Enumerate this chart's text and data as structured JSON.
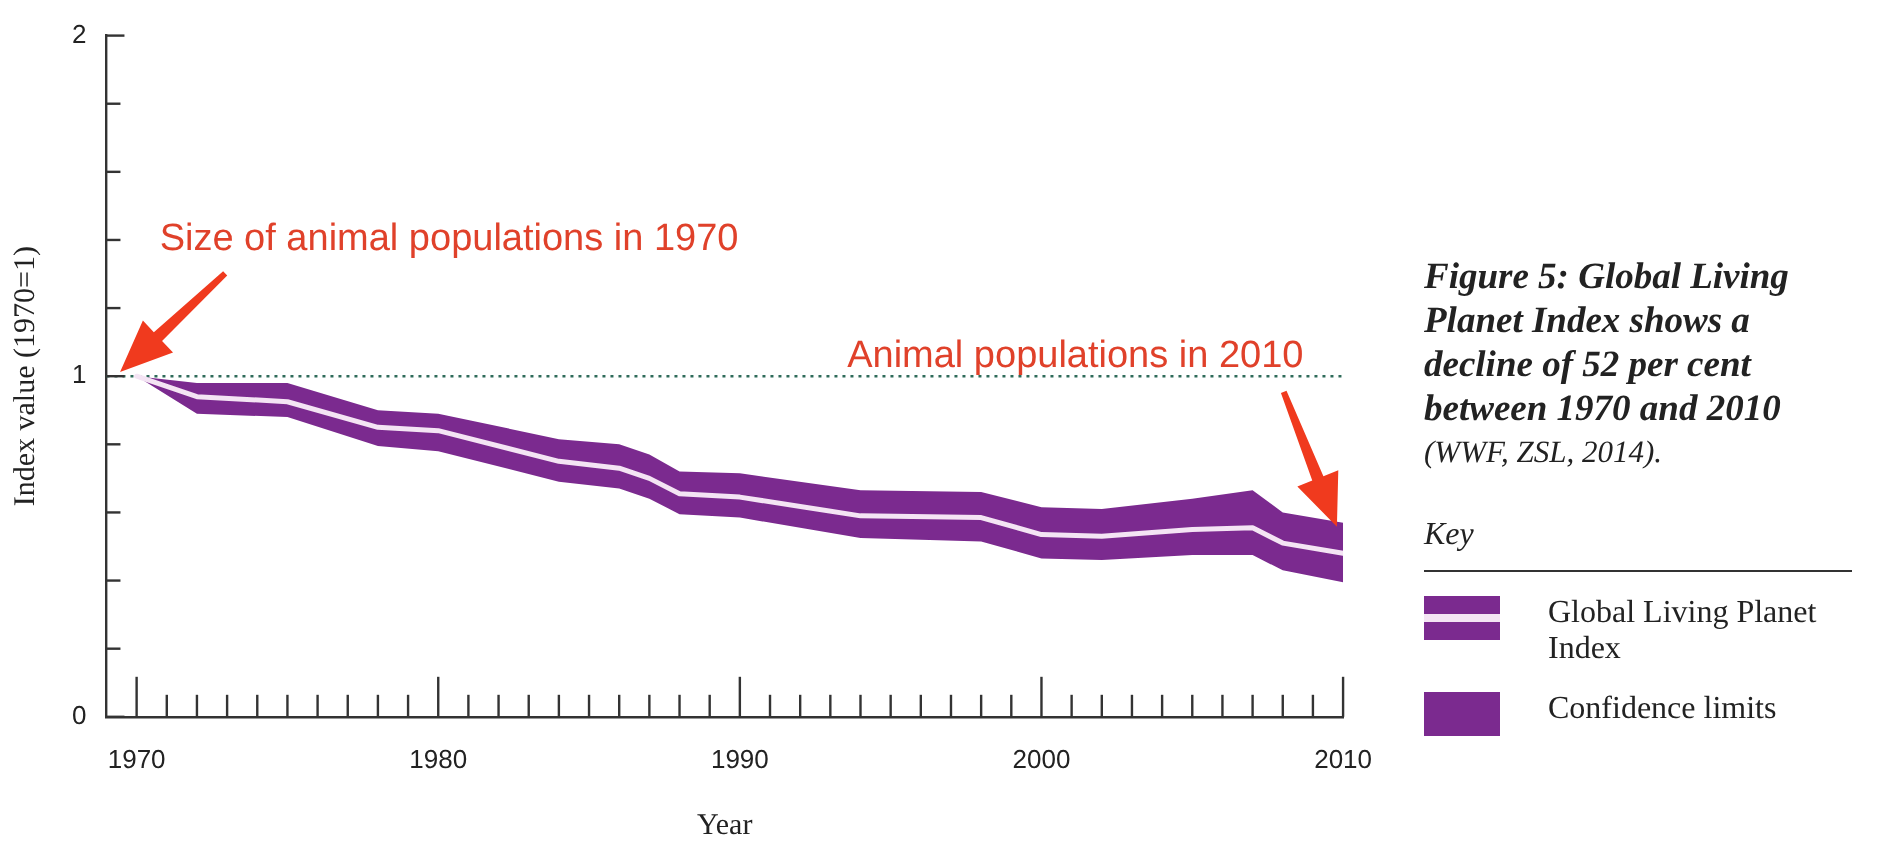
{
  "chart_data": {
    "type": "line",
    "title": "Figure 5: Global Living Planet Index shows a decline of 52 per cent between 1970 and 2010",
    "subtitle": "(WWF, ZSL, 2014).",
    "xlabel": "Year",
    "ylabel": "Index value (1970=1)",
    "legend_title": "Key",
    "legend": "right",
    "grid": false,
    "x": [
      1970,
      1972,
      1975,
      1978,
      1980,
      1984,
      1986,
      1987,
      1988,
      1990,
      1994,
      1998,
      2000,
      2002,
      2005,
      2007,
      2008,
      2010
    ],
    "series": [
      {
        "name": "Global Living Planet Index",
        "type": "line",
        "color": "#f4e4f4",
        "values": [
          1,
          0.94,
          0.925,
          0.85,
          0.84,
          0.75,
          0.73,
          0.7,
          0.655,
          0.645,
          0.59,
          0.585,
          0.535,
          0.53,
          0.55,
          0.555,
          0.51,
          0.48
        ],
        "lower": [
          1,
          0.89,
          0.88,
          0.795,
          0.78,
          0.69,
          0.67,
          0.64,
          0.595,
          0.585,
          0.525,
          0.515,
          0.465,
          0.46,
          0.475,
          0.475,
          0.43,
          0.395
        ],
        "upper": [
          1,
          0.98,
          0.98,
          0.9,
          0.89,
          0.815,
          0.8,
          0.77,
          0.72,
          0.715,
          0.665,
          0.66,
          0.615,
          0.61,
          0.64,
          0.665,
          0.6,
          0.57
        ]
      },
      {
        "name": "Confidence limits",
        "type": "area",
        "color": "#7b2a8f",
        "values": [
          null,
          null,
          null,
          null,
          null,
          null,
          null,
          null,
          null,
          null,
          null,
          null,
          null,
          null,
          null,
          null,
          null,
          null
        ]
      }
    ],
    "xlim": [
      1969,
      2010
    ],
    "xticks": [
      1970,
      {
        "value": 1971,
        "label": null
      },
      {
        "value": 1972,
        "label": null
      },
      {
        "value": 1973,
        "label": null
      },
      {
        "value": 1974,
        "label": null
      },
      {
        "value": 1975,
        "label": null
      },
      {
        "value": 1976,
        "label": null
      },
      {
        "value": 1977,
        "label": null
      },
      {
        "value": 1978,
        "label": null
      },
      {
        "value": 1979,
        "label": null
      },
      1980,
      {
        "value": 1981,
        "label": null
      },
      {
        "value": 1982,
        "label": null
      },
      {
        "value": 1983,
        "label": null
      },
      {
        "value": 1984,
        "label": null
      },
      {
        "value": 1985,
        "label": null
      },
      {
        "value": 1986,
        "label": null
      },
      {
        "value": 1987,
        "label": null
      },
      {
        "value": 1988,
        "label": null
      },
      {
        "value": 1989,
        "label": null
      },
      1990,
      {
        "value": 1991,
        "label": null
      },
      {
        "value": 1992,
        "label": null
      },
      {
        "value": 1993,
        "label": null
      },
      {
        "value": 1994,
        "label": null
      },
      {
        "value": 1995,
        "label": null
      },
      {
        "value": 1996,
        "label": null
      },
      {
        "value": 1997,
        "label": null
      },
      {
        "value": 1998,
        "label": null
      },
      {
        "value": 1999,
        "label": null
      },
      2000,
      {
        "value": 2001,
        "label": null
      },
      {
        "value": 2002,
        "label": null
      },
      {
        "value": 2003,
        "label": null
      },
      {
        "value": 2004,
        "label": null
      },
      {
        "value": 2005,
        "label": null
      },
      {
        "value": 2006,
        "label": null
      },
      {
        "value": 2007,
        "label": null
      },
      {
        "value": 2008,
        "label": null
      },
      {
        "value": 2009,
        "label": null
      },
      2010
    ],
    "ylim": [
      0,
      2
    ],
    "yticks": [
      0,
      {
        "value": 0.2,
        "label": null
      },
      {
        "value": 0.4,
        "label": null
      },
      {
        "value": 0.6,
        "label": null
      },
      {
        "value": 0.8,
        "label": null
      },
      1,
      {
        "value": 1.2,
        "label": null
      },
      {
        "value": 1.4,
        "label": null
      },
      {
        "value": 1.6,
        "label": null
      },
      {
        "value": 1.8,
        "label": null
      },
      2
    ],
    "ref_lines": [
      {
        "axis": "y",
        "value": 1,
        "color": "#2f6b5a",
        "line_style": "dotted"
      }
    ],
    "annotations": [
      "Size of animal populations in 1970",
      "Animal populations in 2010"
    ]
  }
}
